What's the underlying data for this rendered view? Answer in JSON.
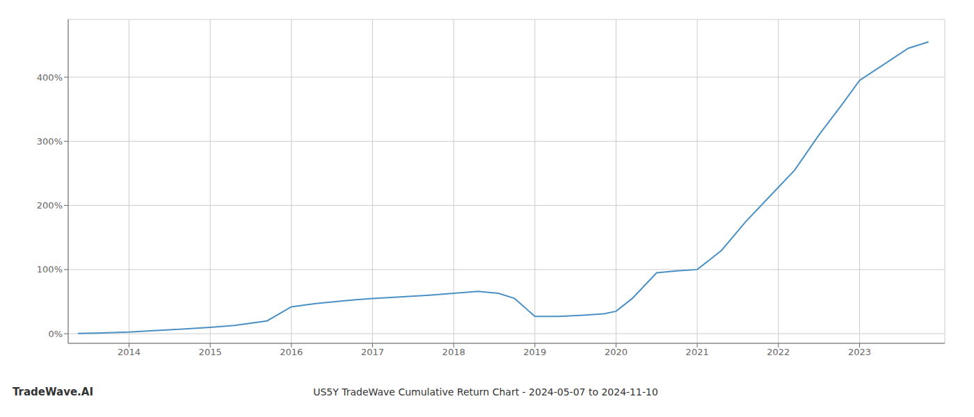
{
  "chart_data": {
    "type": "line",
    "title": "US5Y TradeWave Cumulative Return Chart - 2024-05-07 to 2024-11-10",
    "annotations": [
      "TradeWave.AI"
    ],
    "color": "#4a90c4",
    "grid": true,
    "x": [
      2013.37,
      2013.6,
      2014.0,
      2014.5,
      2015.0,
      2015.3,
      2015.7,
      2016.0,
      2016.3,
      2016.7,
      2017.0,
      2017.3,
      2017.7,
      2018.0,
      2018.3,
      2018.55,
      2018.75,
      2019.0,
      2019.3,
      2019.6,
      2019.85,
      2020.0,
      2020.2,
      2020.5,
      2020.75,
      2021.0,
      2021.3,
      2021.6,
      2021.9,
      2022.2,
      2022.5,
      2022.8,
      2023.0,
      2023.3,
      2023.6,
      2023.85
    ],
    "values": [
      0.5,
      1.0,
      2.5,
      6.0,
      10.0,
      13.0,
      20.0,
      42.0,
      47.0,
      52.0,
      55.0,
      57.0,
      60.0,
      63.0,
      66.0,
      63.0,
      55.0,
      27.0,
      27.0,
      29.0,
      31.0,
      35.0,
      55.0,
      95.0,
      98.0,
      100.0,
      130.0,
      175.0,
      215.0,
      255.0,
      310.0,
      360.0,
      395.0,
      420.0,
      445.0,
      455.0
    ],
    "xlim": [
      2013.25,
      2024.05
    ],
    "xticks": [
      2014,
      2015,
      2016,
      2017,
      2018,
      2019,
      2020,
      2021,
      2022,
      2023
    ],
    "ylim": [
      -15,
      490
    ],
    "yticks": [
      {
        "value": 0,
        "label": "0%"
      },
      {
        "value": 100,
        "label": "100%"
      },
      {
        "value": 200,
        "label": "200%"
      },
      {
        "value": 300,
        "label": "300%"
      },
      {
        "value": 400,
        "label": "400%"
      }
    ]
  }
}
